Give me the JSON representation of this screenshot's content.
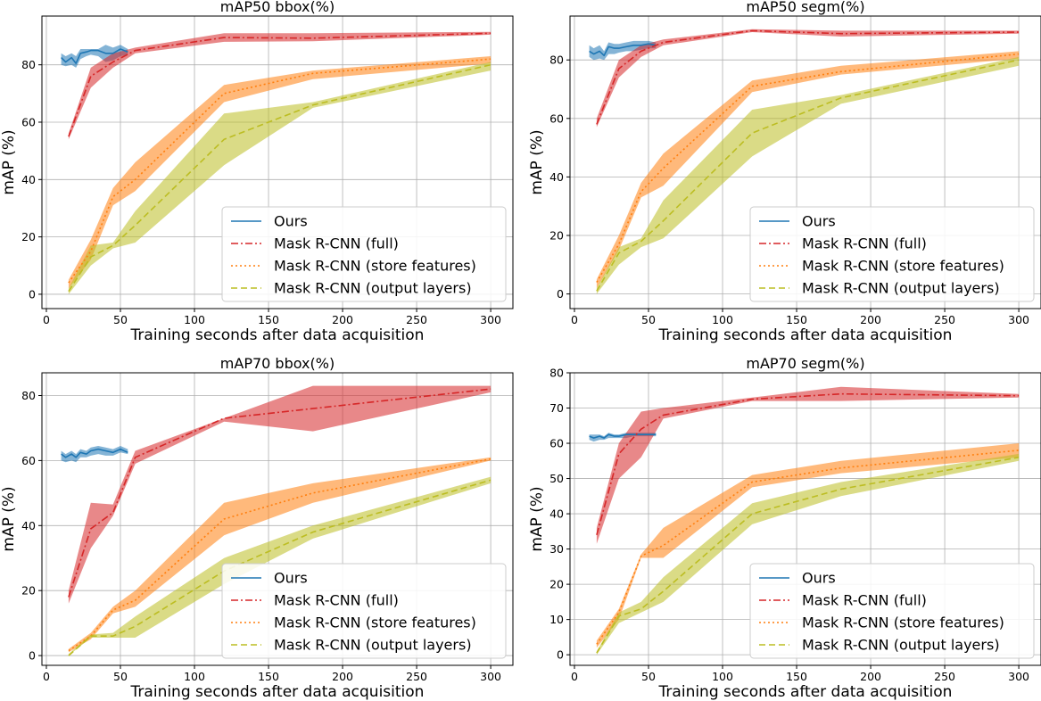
{
  "colors": {
    "ours": "#1f77b4",
    "full": "#d62728",
    "store": "#ff7f0e",
    "output": "#bcbd22",
    "grid": "#b0b0b0",
    "legend_border": "#cccccc"
  },
  "chart_data": [
    {
      "type": "line",
      "title": "mAP50 bbox(%)",
      "xlabel": "Training seconds after data acquisition",
      "ylabel": "mAP (%)",
      "xlim": [
        -3,
        315
      ],
      "ylim": [
        -5,
        97
      ],
      "xticks": [
        0,
        50,
        100,
        150,
        200,
        250,
        300
      ],
      "yticks": [
        0,
        20,
        40,
        60,
        80
      ],
      "legend": "lower-right",
      "series": [
        {
          "key": "ours",
          "name": "Ours",
          "style": "solid",
          "x": [
            10,
            13,
            17,
            20,
            23,
            27,
            30,
            35,
            40,
            45,
            50,
            55
          ],
          "y": [
            82.5,
            81,
            82.5,
            80.5,
            84,
            84.5,
            85,
            85,
            84,
            84,
            85.5,
            84.5
          ],
          "lower": [
            80,
            79.5,
            80,
            79,
            82,
            83,
            83.5,
            83,
            81,
            81.5,
            83,
            83.5
          ],
          "upper": [
            84,
            83,
            84,
            83,
            85.5,
            85.5,
            85.5,
            85.5,
            87,
            86,
            87,
            85.5
          ]
        },
        {
          "key": "full",
          "name": "Mask R-CNN (full)",
          "style": "dashdot",
          "x": [
            15,
            30,
            45,
            60,
            120,
            180,
            300
          ],
          "y": [
            55,
            76,
            81,
            85,
            89.5,
            89.3,
            91
          ],
          "lower": [
            54,
            72,
            79,
            84,
            88,
            88.2,
            90.5
          ],
          "upper": [
            56,
            79,
            84,
            86,
            91,
            91,
            91.5
          ]
        },
        {
          "key": "store",
          "name": "Mask R-CNN (store features)",
          "style": "dotted",
          "x": [
            15,
            30,
            45,
            60,
            120,
            180,
            300
          ],
          "y": [
            4,
            15,
            34,
            40,
            70,
            77,
            82
          ],
          "lower": [
            2,
            12,
            31,
            36,
            67,
            75,
            80.5
          ],
          "upper": [
            5,
            19,
            37,
            46,
            73,
            78,
            83
          ]
        },
        {
          "key": "output",
          "name": "Mask R-CNN (output layers)",
          "style": "dashed",
          "x": [
            15,
            30,
            45,
            60,
            120,
            180,
            300
          ],
          "y": [
            1,
            13,
            17,
            24,
            54,
            66,
            80
          ],
          "lower": [
            0,
            10,
            16,
            18,
            45,
            65,
            78
          ],
          "upper": [
            2,
            17,
            18,
            29,
            63,
            67,
            81
          ]
        }
      ]
    },
    {
      "type": "line",
      "title": "mAP50 segm(%)",
      "xlabel": "Training seconds after data acquisition",
      "ylabel": "mAP (%)",
      "xlim": [
        -3,
        315
      ],
      "ylim": [
        -5,
        95
      ],
      "xticks": [
        0,
        50,
        100,
        150,
        200,
        250,
        300
      ],
      "yticks": [
        0,
        20,
        40,
        60,
        80
      ],
      "legend": "lower-right",
      "series": [
        {
          "key": "ours",
          "name": "Ours",
          "style": "solid",
          "x": [
            10,
            13,
            17,
            20,
            23,
            27,
            30,
            35,
            40,
            45,
            50,
            55
          ],
          "y": [
            83,
            82,
            83,
            81.5,
            84.5,
            84,
            84,
            84.5,
            85,
            85,
            85.5,
            85
          ],
          "lower": [
            81,
            80,
            80.5,
            80,
            82,
            82,
            82.5,
            83,
            83,
            83.5,
            84,
            84
          ],
          "upper": [
            85,
            84,
            85,
            83,
            86,
            85.5,
            85.5,
            86,
            86.5,
            86.5,
            86.5,
            86
          ]
        },
        {
          "key": "full",
          "name": "Mask R-CNN (full)",
          "style": "dashdot",
          "x": [
            15,
            30,
            45,
            60,
            120,
            180,
            300
          ],
          "y": [
            58,
            77,
            83,
            86,
            90,
            89,
            89.5
          ],
          "lower": [
            57,
            74,
            81,
            85,
            89.5,
            88,
            89
          ],
          "upper": [
            60,
            80,
            85,
            87,
            90.5,
            90,
            90
          ]
        },
        {
          "key": "store",
          "name": "Mask R-CNN (store features)",
          "style": "dotted",
          "x": [
            15,
            30,
            45,
            60,
            120,
            180,
            300
          ],
          "y": [
            4,
            17,
            35,
            43,
            71,
            76,
            82
          ],
          "lower": [
            2,
            15,
            33,
            37,
            69,
            75,
            80.5
          ],
          "upper": [
            5,
            20,
            38,
            48,
            73,
            78,
            83
          ]
        },
        {
          "key": "output",
          "name": "Mask R-CNN (output layers)",
          "style": "dashed",
          "x": [
            15,
            30,
            45,
            60,
            120,
            180,
            300
          ],
          "y": [
            1,
            14,
            18,
            25,
            55,
            67,
            80
          ],
          "lower": [
            0,
            10,
            16,
            19,
            47,
            65,
            78
          ],
          "upper": [
            2,
            16,
            19,
            32,
            63,
            68,
            81
          ]
        }
      ]
    },
    {
      "type": "line",
      "title": "mAP70 bbox(%)",
      "xlabel": "Training seconds after data acquisition",
      "ylabel": "mAP (%)",
      "xlim": [
        -3,
        315
      ],
      "ylim": [
        -3,
        87
      ],
      "xticks": [
        0,
        50,
        100,
        150,
        200,
        250,
        300
      ],
      "yticks": [
        0,
        20,
        40,
        60,
        80
      ],
      "legend": "lower-right",
      "series": [
        {
          "key": "ours",
          "name": "Ours",
          "style": "solid",
          "x": [
            10,
            13,
            17,
            20,
            23,
            27,
            30,
            35,
            40,
            45,
            50,
            55
          ],
          "y": [
            62,
            61,
            62,
            61,
            62.5,
            62,
            63,
            63.5,
            63,
            62.5,
            63.5,
            62.5
          ],
          "lower": [
            60,
            59.5,
            60,
            59.5,
            61,
            61,
            61.5,
            62,
            61.5,
            61.5,
            62.5,
            62
          ],
          "upper": [
            63,
            62,
            63,
            62,
            63.5,
            63,
            64,
            64.5,
            64,
            63.5,
            64.5,
            63.5
          ]
        },
        {
          "key": "full",
          "name": "Mask R-CNN (full)",
          "style": "dashdot",
          "x": [
            15,
            30,
            45,
            60,
            120,
            180,
            300
          ],
          "y": [
            18,
            39,
            44,
            61,
            73,
            76,
            82
          ],
          "lower": [
            16,
            33,
            43,
            59,
            72,
            69,
            81
          ],
          "upper": [
            20,
            47,
            46.5,
            63,
            73,
            83,
            83
          ]
        },
        {
          "key": "store",
          "name": "Mask R-CNN (store features)",
          "style": "dotted",
          "x": [
            15,
            30,
            45,
            60,
            120,
            180,
            300
          ],
          "y": [
            1.5,
            6,
            14,
            17,
            42,
            50,
            60.5
          ],
          "lower": [
            1,
            5,
            13,
            15,
            37,
            47,
            60
          ],
          "upper": [
            2,
            7,
            15,
            20,
            47,
            53,
            61
          ]
        },
        {
          "key": "output",
          "name": "Mask R-CNN (output layers)",
          "style": "dashed",
          "x": [
            15,
            30,
            45,
            60,
            120,
            180,
            300
          ],
          "y": [
            0,
            6,
            6,
            9,
            26,
            38,
            54
          ],
          "lower": [
            0,
            5.5,
            5.5,
            5.5,
            22,
            36,
            53
          ],
          "upper": [
            0.5,
            6.5,
            7,
            12,
            30,
            40,
            55
          ]
        }
      ]
    },
    {
      "type": "line",
      "title": "mAP70 segm(%)",
      "xlabel": "Training seconds after data acquisition",
      "ylabel": "mAP (%)",
      "xlim": [
        -3,
        315
      ],
      "ylim": [
        -3,
        80
      ],
      "xticks": [
        0,
        50,
        100,
        150,
        200,
        250,
        300
      ],
      "yticks": [
        0,
        10,
        20,
        30,
        40,
        50,
        60,
        70,
        80
      ],
      "legend": "lower-right",
      "series": [
        {
          "key": "ours",
          "name": "Ours",
          "style": "solid",
          "x": [
            10,
            13,
            17,
            20,
            23,
            27,
            30,
            35,
            40,
            45,
            50,
            55
          ],
          "y": [
            62,
            61.5,
            62,
            61.5,
            62.5,
            62,
            62,
            62.5,
            62.5,
            62.5,
            62.5,
            62.5
          ],
          "lower": [
            61,
            60.5,
            61,
            61,
            61.5,
            61.5,
            61.5,
            61.5,
            62,
            62,
            62,
            62
          ],
          "upper": [
            62.5,
            62.5,
            62.5,
            62,
            63,
            62.5,
            62.5,
            63,
            63,
            63,
            63,
            63
          ]
        },
        {
          "key": "full",
          "name": "Mask R-CNN (full)",
          "style": "dashdot",
          "x": [
            15,
            30,
            45,
            60,
            120,
            180,
            300
          ],
          "y": [
            34,
            57,
            64,
            68,
            72.5,
            74,
            73.5
          ],
          "lower": [
            31.5,
            50,
            56,
            67,
            72,
            72,
            73
          ],
          "upper": [
            36,
            60,
            69,
            70,
            73,
            76,
            74
          ]
        },
        {
          "key": "store",
          "name": "Mask R-CNN (store features)",
          "style": "dotted",
          "x": [
            15,
            30,
            45,
            60,
            120,
            180,
            300
          ],
          "y": [
            3,
            12,
            28,
            31,
            49,
            53,
            58
          ],
          "lower": [
            2,
            10,
            27.5,
            27.5,
            47.5,
            51.5,
            56
          ],
          "upper": [
            4,
            13,
            28.5,
            36,
            51,
            55,
            60
          ]
        },
        {
          "key": "output",
          "name": "Mask R-CNN (output layers)",
          "style": "dashed",
          "x": [
            15,
            30,
            45,
            60,
            120,
            180,
            300
          ],
          "y": [
            0.5,
            11,
            13,
            18,
            40,
            47,
            56
          ],
          "lower": [
            0,
            9,
            12,
            15,
            37,
            45,
            55
          ],
          "upper": [
            1,
            12,
            15,
            22,
            43,
            49,
            57
          ]
        }
      ]
    }
  ]
}
